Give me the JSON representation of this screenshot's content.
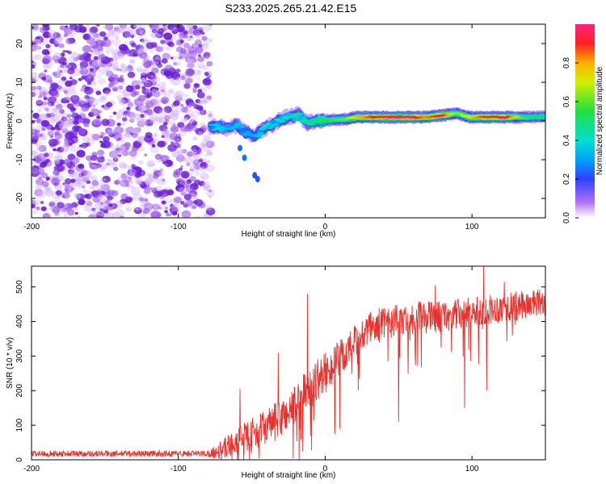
{
  "title": "S233.2025.265.21.42.E15",
  "colors": {
    "snr_line": "#e8302c",
    "axis": "#000000"
  },
  "chart_data": [
    {
      "type": "heatmap",
      "title": "S233.2025.265.21.42.E15",
      "xlabel": "Height of straight line (km)",
      "ylabel": "Frequency (Hz)",
      "xlim": [
        -200,
        150
      ],
      "ylim": [
        -25,
        25
      ],
      "x_ticks": [
        -200,
        -100,
        0,
        100
      ],
      "y_ticks": [
        -20,
        -10,
        0,
        10,
        20
      ],
      "x_tick_labels": [
        "-200",
        "-100",
        "0",
        "100"
      ],
      "y_tick_labels": [
        "-20",
        "-10",
        "0",
        "10",
        "20"
      ],
      "noise_region_x": [
        -200,
        -78
      ],
      "ridge": [
        {
          "x": -78,
          "y": -1.5,
          "a": 0.3
        },
        {
          "x": -72,
          "y": -1.5,
          "a": 0.4
        },
        {
          "x": -66,
          "y": -2.0,
          "a": 0.3
        },
        {
          "x": -60,
          "y": -1.0,
          "a": 0.35
        },
        {
          "x": -54,
          "y": -3.0,
          "a": 0.3
        },
        {
          "x": -48,
          "y": -4.0,
          "a": 0.3
        },
        {
          "x": -42,
          "y": -2.0,
          "a": 0.4
        },
        {
          "x": -36,
          "y": -1.0,
          "a": 0.35
        },
        {
          "x": -30,
          "y": 0.5,
          "a": 0.4
        },
        {
          "x": -25,
          "y": 1.0,
          "a": 0.4
        },
        {
          "x": -18,
          "y": 1.5,
          "a": 0.45
        },
        {
          "x": -12,
          "y": -0.5,
          "a": 0.45
        },
        {
          "x": -5,
          "y": 0.0,
          "a": 0.5
        },
        {
          "x": 5,
          "y": 0.3,
          "a": 0.55
        },
        {
          "x": 15,
          "y": 0.5,
          "a": 0.6
        },
        {
          "x": 22,
          "y": 1.0,
          "a": 0.75
        },
        {
          "x": 40,
          "y": 1.0,
          "a": 0.95
        },
        {
          "x": 60,
          "y": 1.0,
          "a": 0.95
        },
        {
          "x": 68,
          "y": 1.0,
          "a": 0.8
        },
        {
          "x": 80,
          "y": 1.5,
          "a": 0.9
        },
        {
          "x": 90,
          "y": 2.0,
          "a": 0.6
        },
        {
          "x": 98,
          "y": 1.0,
          "a": 0.7
        },
        {
          "x": 110,
          "y": 1.0,
          "a": 0.9
        },
        {
          "x": 125,
          "y": 1.0,
          "a": 0.9
        },
        {
          "x": 135,
          "y": 1.0,
          "a": 0.55
        },
        {
          "x": 150,
          "y": 1.2,
          "a": 0.5
        }
      ],
      "stray_blobs": [
        {
          "x": -58,
          "y": -7.0,
          "a": 0.25
        },
        {
          "x": -55,
          "y": -9.5,
          "a": 0.25
        },
        {
          "x": -48,
          "y": -14.0,
          "a": 0.22
        },
        {
          "x": -46,
          "y": -15.0,
          "a": 0.22
        }
      ],
      "colorbar": {
        "label": "Normalized spectral amplitude",
        "range": [
          0,
          1
        ],
        "ticks": [
          0,
          0.2,
          0.4,
          0.6,
          0.8
        ],
        "tick_labels": [
          "0.0",
          "0.2",
          "0.4",
          "0.6",
          "0.8"
        ]
      }
    },
    {
      "type": "line",
      "xlabel": "Height of straight line (km)",
      "ylabel": "SNR (10 * v/v)",
      "xlim": [
        -200,
        150
      ],
      "ylim": [
        0,
        560
      ],
      "x_ticks": [
        -200,
        -100,
        0,
        100
      ],
      "y_ticks": [
        0,
        100,
        200,
        300,
        400,
        500
      ],
      "x_tick_labels": [
        "-200",
        "-100",
        "0",
        "100"
      ],
      "y_tick_labels": [
        "0",
        "100",
        "200",
        "300",
        "400",
        "500"
      ],
      "trend": [
        {
          "x": -200,
          "y": 18
        },
        {
          "x": -80,
          "y": 18
        },
        {
          "x": -72,
          "y": 25
        },
        {
          "x": -60,
          "y": 55
        },
        {
          "x": -45,
          "y": 85
        },
        {
          "x": -30,
          "y": 120
        },
        {
          "x": -20,
          "y": 160
        },
        {
          "x": -10,
          "y": 215
        },
        {
          "x": 0,
          "y": 250
        },
        {
          "x": 10,
          "y": 290
        },
        {
          "x": 20,
          "y": 335
        },
        {
          "x": 30,
          "y": 375
        },
        {
          "x": 40,
          "y": 395
        },
        {
          "x": 60,
          "y": 410
        },
        {
          "x": 80,
          "y": 415
        },
        {
          "x": 100,
          "y": 425
        },
        {
          "x": 120,
          "y": 440
        },
        {
          "x": 150,
          "y": 455
        }
      ],
      "noise_amplitude": [
        {
          "x": -200,
          "y": 9
        },
        {
          "x": -80,
          "y": 9
        },
        {
          "x": -70,
          "y": 30
        },
        {
          "x": -50,
          "y": 45
        },
        {
          "x": -20,
          "y": 60
        },
        {
          "x": 0,
          "y": 60
        },
        {
          "x": 40,
          "y": 50
        },
        {
          "x": 150,
          "y": 40
        }
      ],
      "spikes": [
        {
          "x": -12,
          "y": 480
        },
        {
          "x": -32,
          "y": 310
        },
        {
          "x": -58,
          "y": 205
        },
        {
          "x": 108,
          "y": 565
        },
        {
          "x": 122,
          "y": 515
        },
        {
          "x": 50,
          "y": 110
        },
        {
          "x": 95,
          "y": 150
        },
        {
          "x": 110,
          "y": 200
        },
        {
          "x": -45,
          "y": 5
        },
        {
          "x": 75,
          "y": 505
        }
      ]
    }
  ]
}
